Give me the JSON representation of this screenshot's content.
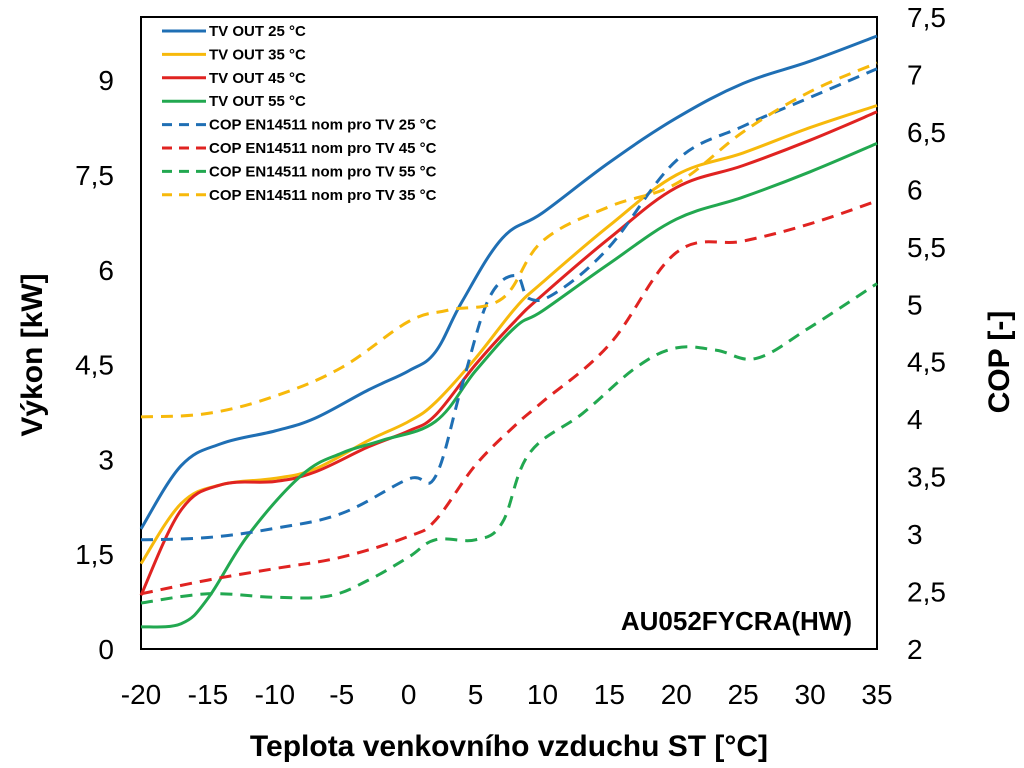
{
  "chart_data": {
    "type": "line",
    "annotation": "AU052FYCRA(HW)",
    "xlabel": "Teplota venkovního vzduchu ST [°C]",
    "ylabel": "Výkon [kW]",
    "y2label": "COP [-]",
    "xlim": [
      -20,
      35
    ],
    "ylim": [
      0,
      10
    ],
    "y2lim": [
      2,
      7.5
    ],
    "x_ticks": [
      -20,
      -15,
      -10,
      -5,
      0,
      5,
      10,
      15,
      20,
      25,
      30,
      35
    ],
    "x_tick_labels": [
      "-20",
      "-15",
      "-10",
      "-5",
      "0",
      "5",
      "10",
      "15",
      "20",
      "25",
      "30",
      "35"
    ],
    "y_ticks": [
      0,
      1.5,
      3,
      4.5,
      6,
      7.5,
      9
    ],
    "y_tick_labels": [
      "0",
      "1,5",
      "3",
      "4,5",
      "6",
      "7,5",
      "9"
    ],
    "y2_ticks": [
      2,
      2.5,
      3,
      3.5,
      4,
      4.5,
      5,
      5.5,
      6,
      6.5,
      7,
      7.5
    ],
    "y2_tick_labels": [
      "2",
      "2,5",
      "3",
      "3,5",
      "4",
      "4,5",
      "5",
      "5,5",
      "6",
      "6,5",
      "7",
      "7,5"
    ],
    "grid": false,
    "legend_position": "top-left",
    "series": [
      {
        "name": "TV OUT 25 °C",
        "axis": "left",
        "color": "#1f6fb4",
        "dash": "solid",
        "x": [
          -20,
          -17,
          -14,
          -10,
          -7,
          -3,
          0,
          2,
          4,
          7,
          10,
          15,
          20,
          25,
          30,
          35
        ],
        "y": [
          1.9,
          2.9,
          3.25,
          3.45,
          3.65,
          4.1,
          4.4,
          4.7,
          5.5,
          6.5,
          6.9,
          7.7,
          8.4,
          8.95,
          9.3,
          9.7
        ]
      },
      {
        "name": "TV OUT 35 °C",
        "axis": "left",
        "color": "#f7b90b",
        "dash": "solid",
        "x": [
          -20,
          -17,
          -14,
          -10,
          -7,
          -3,
          0,
          2,
          5,
          8,
          10,
          15,
          20,
          25,
          30,
          35
        ],
        "y": [
          1.35,
          2.3,
          2.6,
          2.7,
          2.85,
          3.3,
          3.6,
          3.9,
          4.6,
          5.4,
          5.8,
          6.7,
          7.5,
          7.85,
          8.25,
          8.6
        ]
      },
      {
        "name": "TV OUT 45 °C",
        "axis": "left",
        "color": "#e02321",
        "dash": "solid",
        "x": [
          -20,
          -17,
          -14,
          -10,
          -7,
          -3,
          0,
          2,
          5,
          8,
          10,
          15,
          20,
          25,
          30,
          35
        ],
        "y": [
          0.85,
          2.2,
          2.6,
          2.65,
          2.8,
          3.2,
          3.45,
          3.7,
          4.5,
          5.2,
          5.6,
          6.5,
          7.3,
          7.65,
          8.05,
          8.5
        ]
      },
      {
        "name": "TV OUT 55 °C",
        "axis": "left",
        "color": "#22a850",
        "dash": "solid",
        "x": [
          -20,
          -17,
          -15,
          -12,
          -8,
          -5,
          -2,
          2,
          5,
          8,
          10,
          15,
          20,
          25,
          30,
          35
        ],
        "y": [
          0.35,
          0.4,
          0.8,
          1.8,
          2.75,
          3.1,
          3.3,
          3.6,
          4.4,
          5.1,
          5.35,
          6.1,
          6.8,
          7.15,
          7.55,
          8.0
        ]
      },
      {
        "name": "COP EN14511 nom pro TV 25 °C",
        "axis": "right",
        "color": "#1f6fb4",
        "dash": "dashed",
        "x": [
          -20,
          -15,
          -10,
          -5,
          0,
          2,
          4,
          6,
          8,
          9,
          11,
          15,
          20,
          25,
          30,
          35
        ],
        "y": [
          2.95,
          2.97,
          3.05,
          3.18,
          3.48,
          3.5,
          4.3,
          5.05,
          5.25,
          5.05,
          5.1,
          5.5,
          6.25,
          6.55,
          6.8,
          7.05
        ]
      },
      {
        "name": "COP EN14511 nom pro TV 45 °C",
        "axis": "right",
        "color": "#e02321",
        "dash": "dashed",
        "x": [
          -20,
          -15,
          -10,
          -5,
          0,
          2,
          5,
          8,
          10,
          15,
          20,
          25,
          30,
          35
        ],
        "y": [
          2.48,
          2.6,
          2.7,
          2.8,
          2.98,
          3.12,
          3.6,
          3.95,
          4.15,
          4.65,
          5.45,
          5.55,
          5.7,
          5.9
        ]
      },
      {
        "name": "COP EN14511 nom pro TV 55 °C",
        "axis": "right",
        "color": "#22a850",
        "dash": "dashed",
        "x": [
          -20,
          -15,
          -10,
          -6,
          -3,
          0,
          2,
          5,
          7,
          9,
          13,
          17,
          20,
          23,
          26,
          30,
          35
        ],
        "y": [
          2.4,
          2.48,
          2.45,
          2.46,
          2.6,
          2.8,
          2.95,
          2.95,
          3.1,
          3.7,
          4.05,
          4.45,
          4.62,
          4.6,
          4.53,
          4.8,
          5.18
        ]
      },
      {
        "name": "COP EN14511 nom pro TV 35 °C",
        "axis": "right",
        "color": "#f7b90b",
        "dash": "dashed",
        "x": [
          -20,
          -15,
          -10,
          -5,
          0,
          3,
          7,
          10,
          15,
          20,
          25,
          30,
          35
        ],
        "y": [
          4.02,
          4.05,
          4.2,
          4.45,
          4.85,
          4.95,
          5.05,
          5.55,
          5.85,
          6.05,
          6.5,
          6.85,
          7.1
        ]
      }
    ]
  }
}
